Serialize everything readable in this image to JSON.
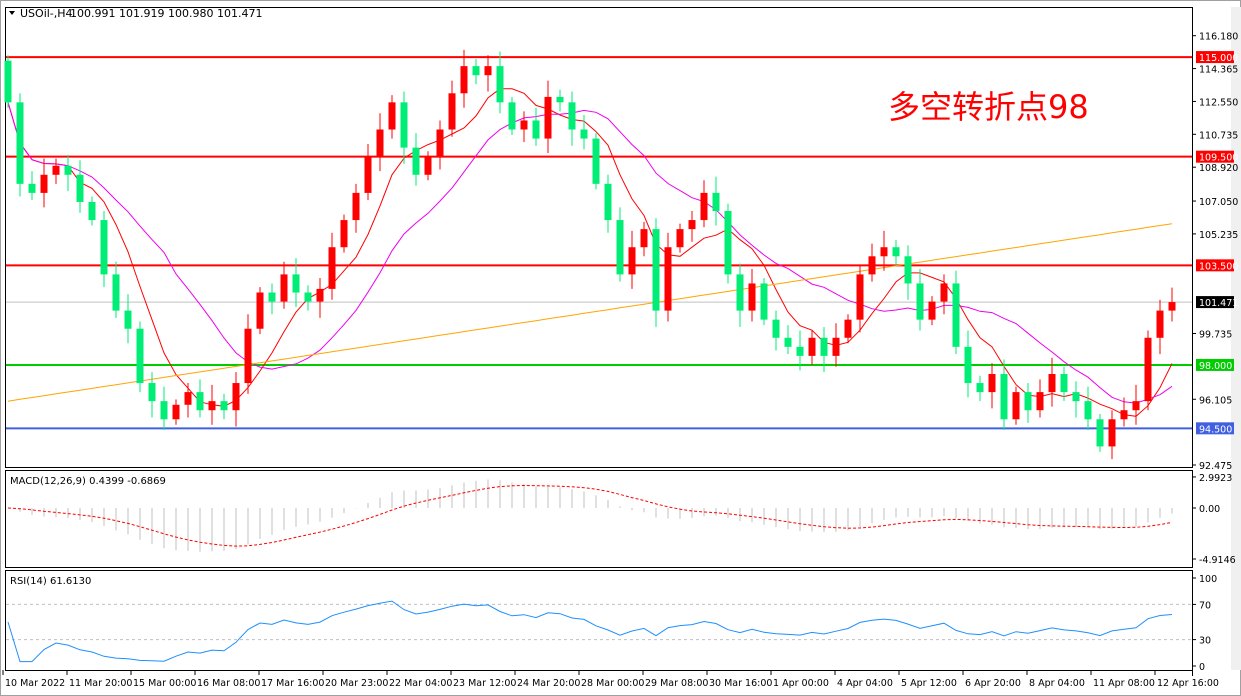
{
  "header": {
    "symbol": "USOil-,H4",
    "ohlc": "100.991 101.919 100.980 101.471"
  },
  "annotation": {
    "text": "多空转折点98",
    "color": "#ff0000"
  },
  "colors": {
    "bull": "#ff0000",
    "bear": "#00ee76",
    "ma_fast": "#ff0000",
    "ma_mid": "#ee00ee",
    "ma_slow": "#ffa500",
    "rsi": "#1e90ff",
    "macd_hist": "#c0c0c0",
    "macd_signal": "#ff0000"
  },
  "chart_data": [
    {
      "type": "candlestick",
      "title": "USOil-,H4",
      "ylim": [
        92.475,
        116.18
      ],
      "y_ticks": [
        "116.180",
        "114.365",
        "112.550",
        "110.735",
        "108.920",
        "107.050",
        "105.235",
        "99.735",
        "96.105",
        "92.475"
      ],
      "x_tick_labels": [
        "10 Mar 2022",
        "11 Mar 20:00",
        "15 Mar 00:00",
        "16 Mar 08:00",
        "17 Mar 16:00",
        "20 Mar 23:00",
        "22 Mar 04:00",
        "23 Mar 12:00",
        "24 Mar 20:00",
        "28 Mar 00:00",
        "29 Mar 08:00",
        "30 Mar 16:00",
        "1 Apr 00:00",
        "4 Apr 04:00",
        "5 Apr 12:00",
        "6 Apr 20:00",
        "8 Apr 04:00",
        "11 Apr 08:00",
        "12 Apr 16:00"
      ],
      "close": [
        112.5,
        108,
        107.5,
        108.5,
        109,
        108.5,
        107,
        106,
        103,
        101,
        100,
        97,
        96,
        95,
        95.8,
        96.5,
        95.5,
        96,
        95.5,
        97,
        100,
        102,
        101.5,
        103,
        102,
        101.5,
        102.2,
        104.5,
        106,
        107.5,
        109.5,
        111,
        112.5,
        110,
        108.5,
        109.5,
        111,
        113,
        114.5,
        114,
        114.5,
        112.5,
        111,
        111.5,
        110.5,
        112.8,
        112.5,
        111,
        110.5,
        108,
        106,
        103,
        104.5,
        105.5,
        101,
        104.5,
        105.5,
        106,
        107.5,
        106.5,
        103,
        101,
        102.5,
        100.5,
        99.5,
        99,
        98.5,
        99.5,
        98.5,
        99.5,
        100.5,
        103,
        104,
        104.5,
        104,
        102.5,
        100.5,
        101.5,
        102.5,
        99,
        97,
        96.5,
        97.5,
        95,
        96.5,
        95.5,
        96.5,
        97.5,
        96.5,
        96,
        95,
        93.5,
        95,
        95.5,
        96,
        99.5,
        101,
        101.471
      ],
      "first_open": 114.8,
      "horizontal_levels": [
        {
          "label": "115.000",
          "value": 115.0,
          "color": "#ff0000"
        },
        {
          "label": "109.500",
          "value": 109.5,
          "color": "#ff0000"
        },
        {
          "label": "103.500",
          "value": 103.5,
          "color": "#ff0000"
        },
        {
          "label": "98.000",
          "value": 98.0,
          "color": "#00cc00"
        },
        {
          "label": "94.500",
          "value": 94.5,
          "color": "#4060e0"
        }
      ],
      "current_price": {
        "label": "101.471",
        "value": 101.471
      }
    },
    {
      "type": "histogram+line",
      "title": "MACD(12,26,9) 0.4399 -0.6869",
      "ylim": [
        -4.9146,
        2.9923
      ],
      "y_ticks": [
        "2.9923",
        "0.00",
        "-4.9146"
      ]
    },
    {
      "type": "line",
      "title": "RSI(14) 61.6130",
      "ylim": [
        0,
        100
      ],
      "y_ticks": [
        "100",
        "70",
        "30",
        "0"
      ],
      "levels": [
        70,
        30
      ]
    }
  ]
}
